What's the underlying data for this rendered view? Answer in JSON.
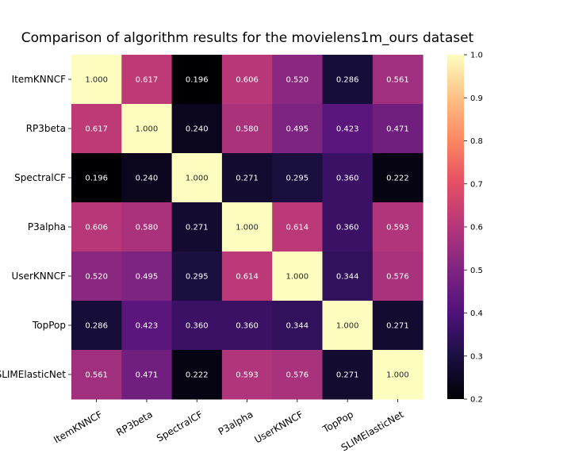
{
  "chart_data": {
    "type": "heatmap",
    "title": "Comparison of algorithm results for the movielens1m_ours dataset",
    "row_labels": [
      "ItemKNNCF",
      "RP3beta",
      "SpectralCF",
      "P3alpha",
      "UserKNNCF",
      "TopPop",
      "SLIMElasticNet"
    ],
    "col_labels": [
      "ItemKNNCF",
      "RP3beta",
      "SpectralCF",
      "P3alpha",
      "UserKNNCF",
      "TopPop",
      "SLIMElasticNet"
    ],
    "values": [
      [
        1.0,
        0.617,
        0.196,
        0.606,
        0.52,
        0.286,
        0.561
      ],
      [
        0.617,
        1.0,
        0.24,
        0.58,
        0.495,
        0.423,
        0.471
      ],
      [
        0.196,
        0.24,
        1.0,
        0.271,
        0.295,
        0.36,
        0.222
      ],
      [
        0.606,
        0.58,
        0.271,
        1.0,
        0.614,
        0.36,
        0.593
      ],
      [
        0.52,
        0.495,
        0.295,
        0.614,
        1.0,
        0.344,
        0.576
      ],
      [
        0.286,
        0.423,
        0.36,
        0.36,
        0.344,
        1.0,
        0.271
      ],
      [
        0.561,
        0.471,
        0.222,
        0.593,
        0.576,
        0.271,
        1.0
      ]
    ],
    "value_format": "3 decimals",
    "colormap": "magma",
    "colorbar": {
      "range": [
        0.2,
        1.0
      ],
      "ticks": [
        "0.2",
        "0.3",
        "0.4",
        "0.5",
        "0.6",
        "0.7",
        "0.8",
        "0.9",
        "1.0"
      ]
    },
    "grid": false,
    "legend": "colorbar right"
  }
}
